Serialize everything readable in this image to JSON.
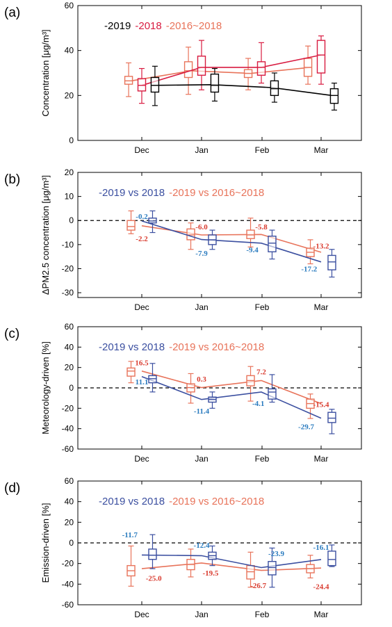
{
  "chart_data": [
    {
      "panel_label": "(a)",
      "type": "box",
      "ylabel": "Concentration [μg/m³]",
      "ylim": [
        0,
        60
      ],
      "yticks": [
        0,
        20,
        40,
        60
      ],
      "categories": [
        "Dec",
        "Jan",
        "Feb",
        "Mar"
      ],
      "zero_line": false,
      "legend": {
        "placement": "top-left",
        "entries": [
          {
            "text": "-2019",
            "color": "#000000"
          },
          {
            "text": "-2018",
            "color": "#d81b40"
          },
          {
            "text": "-2016~2018",
            "color": "#e8735a"
          }
        ]
      },
      "series": [
        {
          "name": "2016~2018",
          "color": "#e8735a",
          "offset": -0.22,
          "line": [
            26.5,
            31,
            29.8,
            32.5
          ],
          "boxes": [
            {
              "low": 19.5,
              "q1": 25,
              "median": 26.5,
              "q3": 28.5,
              "high": 34.5
            },
            {
              "low": 20.5,
              "q1": 28,
              "median": 31,
              "q3": 35,
              "high": 41.5
            },
            {
              "low": 22.5,
              "q1": 28,
              "median": 29.8,
              "q3": 31.5,
              "high": 36.5
            },
            {
              "low": 25,
              "q1": 28.5,
              "median": 32.5,
              "q3": 36.5,
              "high": 42
            }
          ]
        },
        {
          "name": "2018",
          "color": "#d81b40",
          "offset": 0,
          "line": [
            24.5,
            32.5,
            32.5,
            38
          ],
          "boxes": [
            {
              "low": 16.5,
              "q1": 22,
              "median": 24.5,
              "q3": 27.5,
              "high": 32
            },
            {
              "low": 22.5,
              "q1": 29,
              "median": 32.5,
              "q3": 37.5,
              "high": 44.5
            },
            {
              "low": 25.5,
              "q1": 29,
              "median": 32.5,
              "q3": 35,
              "high": 43.5
            },
            {
              "low": 25,
              "q1": 30,
              "median": 38,
              "q3": 44.5,
              "high": 46.5
            }
          ]
        },
        {
          "name": "2019",
          "color": "#000000",
          "offset": 0.22,
          "line": [
            24.5,
            24.8,
            23.5,
            20
          ],
          "boxes": [
            {
              "low": 15.5,
              "q1": 21.5,
              "median": 24.5,
              "q3": 28,
              "high": 33
            },
            {
              "low": 17.5,
              "q1": 21.5,
              "median": 24.5,
              "q3": 29.5,
              "high": 32
            },
            {
              "low": 17,
              "q1": 20,
              "median": 23,
              "q3": 26.5,
              "high": 30
            },
            {
              "low": 13.5,
              "q1": 16.5,
              "median": 20,
              "q3": 23,
              "high": 25.5
            }
          ]
        }
      ],
      "labels": []
    },
    {
      "panel_label": "(b)",
      "type": "box",
      "ylabel": "ΔPM2.5 concentration [μg/m³]",
      "ylim": [
        -32,
        20
      ],
      "yticks": [
        -30,
        -20,
        -10,
        0,
        10,
        20
      ],
      "categories": [
        "Dec",
        "Jan",
        "Feb",
        "Mar"
      ],
      "zero_line": true,
      "legend": {
        "placement": "top-left",
        "entries": [
          {
            "text": "-2019 vs 2018",
            "color": "#3b4fa0"
          },
          {
            "text": "-2019 vs 2016~2018",
            "color": "#e8735a"
          }
        ]
      },
      "series": [
        {
          "name": "2019 vs 2016~2018",
          "color": "#e8735a",
          "offset": -0.18,
          "line": [
            -2.2,
            -6.0,
            -5.8,
            -13.2
          ],
          "boxes": [
            {
              "low": -5.5,
              "q1": -4,
              "median": -2.5,
              "q3": 0,
              "high": 4
            },
            {
              "low": -12,
              "q1": -8,
              "median": -6,
              "q3": -3.5,
              "high": -1
            },
            {
              "low": -11,
              "q1": -7.5,
              "median": -6,
              "q3": -4,
              "high": 1
            },
            {
              "low": -18,
              "q1": -15,
              "median": -13.2,
              "q3": -11.5,
              "high": -8
            }
          ]
        },
        {
          "name": "2019 vs 2018",
          "color": "#3b4fa0",
          "offset": 0.18,
          "line": [
            -0.2,
            -7.9,
            -9.4,
            -17.2
          ],
          "boxes": [
            {
              "low": -5,
              "q1": -1,
              "median": -0.2,
              "q3": 1,
              "high": 4
            },
            {
              "low": -12,
              "q1": -10,
              "median": -8,
              "q3": -6,
              "high": -4
            },
            {
              "low": -16,
              "q1": -13,
              "median": -9.4,
              "q3": -6.5,
              "high": -4
            },
            {
              "low": -23.5,
              "q1": -20.5,
              "median": -17.2,
              "q3": -14.5,
              "high": -12
            }
          ]
        }
      ],
      "labels": [
        {
          "text": "-0.2",
          "color": "#2a7bbf",
          "x": 0,
          "y": 1.8
        },
        {
          "text": "-2.2",
          "color": "#d93b2f",
          "x": 0,
          "y": -7.5
        },
        {
          "text": "-6.0",
          "color": "#d93b2f",
          "x": 1,
          "y": -2.5
        },
        {
          "text": "-7.9",
          "color": "#2a7bbf",
          "x": 1,
          "y": -13.5
        },
        {
          "text": "-5.8",
          "color": "#d93b2f",
          "x": 2,
          "y": -2.5
        },
        {
          "text": "-9.4",
          "color": "#2a7bbf",
          "x": 1.85,
          "y": -12
        },
        {
          "text": "-13.2",
          "color": "#d93b2f",
          "x": 3,
          "y": -10.5
        },
        {
          "text": "-17.2",
          "color": "#2a7bbf",
          "x": 2.8,
          "y": -20
        }
      ]
    },
    {
      "panel_label": "(c)",
      "type": "box",
      "ylabel": "Meteorology-driven [%]",
      "ylim": [
        -60,
        60
      ],
      "yticks": [
        -60,
        -40,
        -20,
        0,
        20,
        40,
        60
      ],
      "categories": [
        "Dec",
        "Jan",
        "Feb",
        "Mar"
      ],
      "zero_line": true,
      "legend": {
        "placement": "top-left",
        "entries": [
          {
            "text": "-2019 vs 2018",
            "color": "#3b4fa0"
          },
          {
            "text": "-2019 vs 2016~2018",
            "color": "#e8735a"
          }
        ]
      },
      "series": [
        {
          "name": "2019 vs 2016~2018",
          "color": "#e8735a",
          "offset": -0.18,
          "line": [
            16.5,
            0.3,
            7.2,
            -15.4
          ],
          "boxes": [
            {
              "low": 5,
              "q1": 11.5,
              "median": 16.5,
              "q3": 19.5,
              "high": 26
            },
            {
              "low": -15,
              "q1": -4,
              "median": 0.3,
              "q3": 4,
              "high": 14
            },
            {
              "low": -13,
              "q1": 2,
              "median": 7.2,
              "q3": 12,
              "high": 21
            },
            {
              "low": -30,
              "q1": -20,
              "median": -15.4,
              "q3": -11,
              "high": -6
            }
          ]
        },
        {
          "name": "2019 vs 2018",
          "color": "#3b4fa0",
          "offset": 0.18,
          "line": [
            11.1,
            -11.4,
            -4.1,
            -29.7
          ],
          "boxes": [
            {
              "low": -4,
              "q1": 5,
              "median": 9,
              "q3": 12,
              "high": 24
            },
            {
              "low": -20,
              "q1": -14,
              "median": -11.4,
              "q3": -9,
              "high": -4
            },
            {
              "low": -14,
              "q1": -11,
              "median": -4.1,
              "q3": -1,
              "high": 13
            },
            {
              "low": -45,
              "q1": -34,
              "median": -29.7,
              "q3": -24,
              "high": -21
            }
          ]
        }
      ],
      "labels": [
        {
          "text": "16.5",
          "color": "#d93b2f",
          "x": 0,
          "y": 25
        },
        {
          "text": "11.1",
          "color": "#2a7bbf",
          "x": 0,
          "y": 6
        },
        {
          "text": "0.3",
          "color": "#d93b2f",
          "x": 1,
          "y": 9
        },
        {
          "text": "-11.4",
          "color": "#2a7bbf",
          "x": 1,
          "y": -22.5
        },
        {
          "text": "7.2",
          "color": "#d93b2f",
          "x": 2,
          "y": 16
        },
        {
          "text": "-4.1",
          "color": "#2a7bbf",
          "x": 1.95,
          "y": -15
        },
        {
          "text": "-15.4",
          "color": "#d93b2f",
          "x": 3,
          "y": -16
        },
        {
          "text": "-29.7",
          "color": "#2a7bbf",
          "x": 2.75,
          "y": -38
        }
      ]
    },
    {
      "panel_label": "(d)",
      "type": "box",
      "ylabel": "Emission-driven [%]",
      "ylim": [
        -60,
        60
      ],
      "yticks": [
        -60,
        -40,
        -20,
        0,
        20,
        40,
        60
      ],
      "categories": [
        "Dec",
        "Jan",
        "Feb",
        "Mar"
      ],
      "zero_line": true,
      "legend": {
        "placement": "top-left",
        "entries": [
          {
            "text": "-2019 vs 2018",
            "color": "#3b4fa0"
          },
          {
            "text": "-2019 vs 2016~2018",
            "color": "#e8735a"
          }
        ]
      },
      "series": [
        {
          "name": "2019 vs 2016~2018",
          "color": "#e8735a",
          "offset": -0.18,
          "line": [
            -25.0,
            -19.5,
            -26.7,
            -24.4
          ],
          "boxes": [
            {
              "low": -42,
              "q1": -32,
              "median": -27,
              "q3": -22,
              "high": -3
            },
            {
              "low": -33,
              "q1": -26,
              "median": -21,
              "q3": -16,
              "high": -6
            },
            {
              "low": -43,
              "q1": -35,
              "median": -28,
              "q3": -22,
              "high": -9
            },
            {
              "low": -34,
              "q1": -29,
              "median": -25,
              "q3": -21,
              "high": -12
            }
          ]
        },
        {
          "name": "2019 vs 2018",
          "color": "#3b4fa0",
          "offset": 0.18,
          "line": [
            -11.7,
            -12.4,
            -23.9,
            -16.1
          ],
          "boxes": [
            {
              "low": -25,
              "q1": -16,
              "median": -12,
              "q3": -6,
              "high": 8
            },
            {
              "low": -22,
              "q1": -16,
              "median": -12.4,
              "q3": -9,
              "high": -3
            },
            {
              "low": -43,
              "q1": -31,
              "median": -23.9,
              "q3": -18,
              "high": -5
            },
            {
              "low": -23,
              "q1": -22,
              "median": -16.1,
              "q3": -8,
              "high": -2
            }
          ]
        }
      ],
      "labels": [
        {
          "text": "-11.7",
          "color": "#2a7bbf",
          "x": -0.2,
          "y": 8
        },
        {
          "text": "-25.0",
          "color": "#d93b2f",
          "x": 0.2,
          "y": -34
        },
        {
          "text": "-12.4",
          "color": "#2a7bbf",
          "x": 1,
          "y": -2
        },
        {
          "text": "-19.5",
          "color": "#d93b2f",
          "x": 1.15,
          "y": -29
        },
        {
          "text": "-26.7",
          "color": "#d93b2f",
          "x": 1.95,
          "y": -41
        },
        {
          "text": "-23.9",
          "color": "#2a7bbf",
          "x": 2.25,
          "y": -10
        },
        {
          "text": "-16.1",
          "color": "#2a7bbf",
          "x": 3,
          "y": -4
        },
        {
          "text": "-24.4",
          "color": "#d93b2f",
          "x": 3,
          "y": -42
        }
      ]
    }
  ]
}
